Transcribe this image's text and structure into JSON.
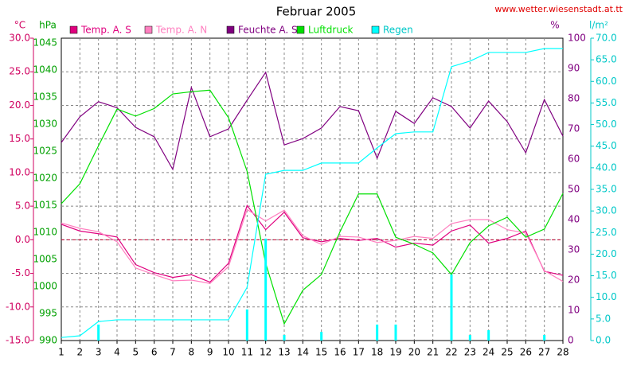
{
  "chart_data": {
    "type": "line",
    "title": "Februar 2005",
    "source": "www.wetter.wiesenstadt.at.tt",
    "x": [
      1,
      2,
      3,
      4,
      5,
      6,
      7,
      8,
      9,
      10,
      11,
      12,
      13,
      14,
      15,
      16,
      17,
      18,
      19,
      20,
      21,
      22,
      23,
      24,
      25,
      26,
      27,
      28
    ],
    "xlim": [
      1,
      28
    ],
    "grid": true,
    "axes": [
      {
        "unit": "°C",
        "color": "#d00060",
        "lim": [
          -15,
          30
        ],
        "ticks": [
          {
            "value": -15,
            "label": "-15.0"
          },
          {
            "value": -10,
            "label": "-10.0"
          },
          {
            "value": -5,
            "label": "-5.0"
          },
          {
            "value": 0,
            "label": "0.0"
          },
          {
            "value": 5,
            "label": "5.0"
          },
          {
            "value": 10,
            "label": "10.0"
          },
          {
            "value": 15,
            "label": "15.0"
          },
          {
            "value": 20,
            "label": "20.0"
          },
          {
            "value": 25,
            "label": "25.0"
          },
          {
            "value": 30,
            "label": "30.0"
          }
        ]
      },
      {
        "unit": "hPa",
        "color": "#00a000",
        "lim": [
          990,
          1045.9
        ],
        "ticks": [
          990,
          995,
          1000,
          1005,
          1010,
          1015,
          1020,
          1025,
          1030,
          1035,
          1040,
          1045
        ]
      },
      {
        "unit": "%",
        "color": "#800080",
        "lim": [
          0,
          100
        ],
        "ticks": [
          0,
          10,
          20,
          30,
          40,
          50,
          60,
          70,
          80,
          90,
          100
        ]
      },
      {
        "unit": "l/m²",
        "color": "#00c8c8",
        "lim": [
          0,
          70
        ],
        "ticks": [
          {
            "value": 0,
            "label": "0.0"
          },
          {
            "value": 5,
            "label": "5.0"
          },
          {
            "value": 10,
            "label": "10.0"
          },
          {
            "value": 15,
            "label": "15.0"
          },
          {
            "value": 20,
            "label": "20.0"
          },
          {
            "value": 25,
            "label": "25.0"
          },
          {
            "value": 30,
            "label": "30.0"
          },
          {
            "value": 35,
            "label": "35.0"
          },
          {
            "value": 40,
            "label": "40.0"
          },
          {
            "value": 45,
            "label": "45.0"
          },
          {
            "value": 50,
            "label": "50.0"
          },
          {
            "value": 55,
            "label": "55.0"
          },
          {
            "value": 60,
            "label": "60.0"
          },
          {
            "value": 65,
            "label": "65.0"
          },
          {
            "value": 70,
            "label": "70.0"
          }
        ]
      }
    ],
    "reference_line": {
      "value": 0,
      "axis": 0,
      "color": "#c00030"
    },
    "series": [
      {
        "name": "Temp. A. S",
        "color": "#e0007f",
        "axis": 0,
        "values": [
          2.3,
          1.3,
          0.9,
          0.4,
          -3.7,
          -4.9,
          -5.6,
          -5.2,
          -6.3,
          -3.5,
          5.1,
          1.5,
          4.1,
          0.3,
          -0.3,
          0.2,
          -0.1,
          0.2,
          -1.1,
          -0.5,
          -0.8,
          1.3,
          2.2,
          -0.5,
          0.2,
          1.3,
          -4.7,
          -5.3
        ]
      },
      {
        "name": "Temp. A. N",
        "color": "#ff80c0",
        "axis": 0,
        "values": [
          2.5,
          1.7,
          1.2,
          -0.3,
          -4.2,
          -5.2,
          -6.1,
          -6.0,
          -6.5,
          -4.0,
          4.5,
          2.8,
          4.4,
          0.6,
          -0.7,
          0.5,
          0.4,
          -0.4,
          -0.1,
          0.5,
          0.2,
          2.4,
          3.0,
          3.0,
          1.5,
          1.0,
          -4.6,
          -6.2
        ]
      },
      {
        "name": "Feuchte A. S",
        "color": "#800080",
        "axis": 2,
        "values": [
          65.5,
          74,
          79,
          77,
          70.5,
          67.4,
          56.6,
          83.7,
          67.4,
          70,
          79.5,
          88.7,
          64.7,
          66.8,
          70.3,
          77.4,
          76,
          60.3,
          75.8,
          71.8,
          80.3,
          77.4,
          70.3,
          79.2,
          72.4,
          62.1,
          79.7,
          67.6
        ]
      },
      {
        "name": "Luftdruck",
        "color": "#00e000",
        "axis": 1,
        "values": [
          1015.3,
          1019,
          1026,
          1032.8,
          1031.5,
          1032.9,
          1035.6,
          1036,
          1036.3,
          1031.2,
          1021.3,
          1004.3,
          993.1,
          999.3,
          1002.2,
          1010.1,
          1017.1,
          1017.1,
          1009.1,
          1007.8,
          1006.2,
          1002.2,
          1008.1,
          1011.2,
          1012.8,
          1009.1,
          1010.6,
          1017.2
        ]
      },
      {
        "name": "Regen",
        "color": "#00ffff",
        "axis": 3,
        "values": [
          0.7,
          1.1,
          4.4,
          4.8,
          4.8,
          4.8,
          4.8,
          4.8,
          4.8,
          4.8,
          12.3,
          38.5,
          39.4,
          39.4,
          41.1,
          41.1,
          41.1,
          44.6,
          47.9,
          48.3,
          48.3,
          63.4,
          64.7,
          66.7,
          66.7,
          66.7,
          67.6,
          67.6
        ]
      },
      {
        "type": "bar",
        "color": "#00ffff",
        "axis": 3,
        "values": [
          0,
          0,
          3.7,
          0,
          0,
          0,
          0,
          0,
          0,
          0,
          7.2,
          23.6,
          1.3,
          0,
          2,
          0,
          0,
          3.7,
          3.7,
          0,
          0,
          15.3,
          1.3,
          2.4,
          0,
          0,
          1.3,
          0
        ]
      }
    ]
  }
}
